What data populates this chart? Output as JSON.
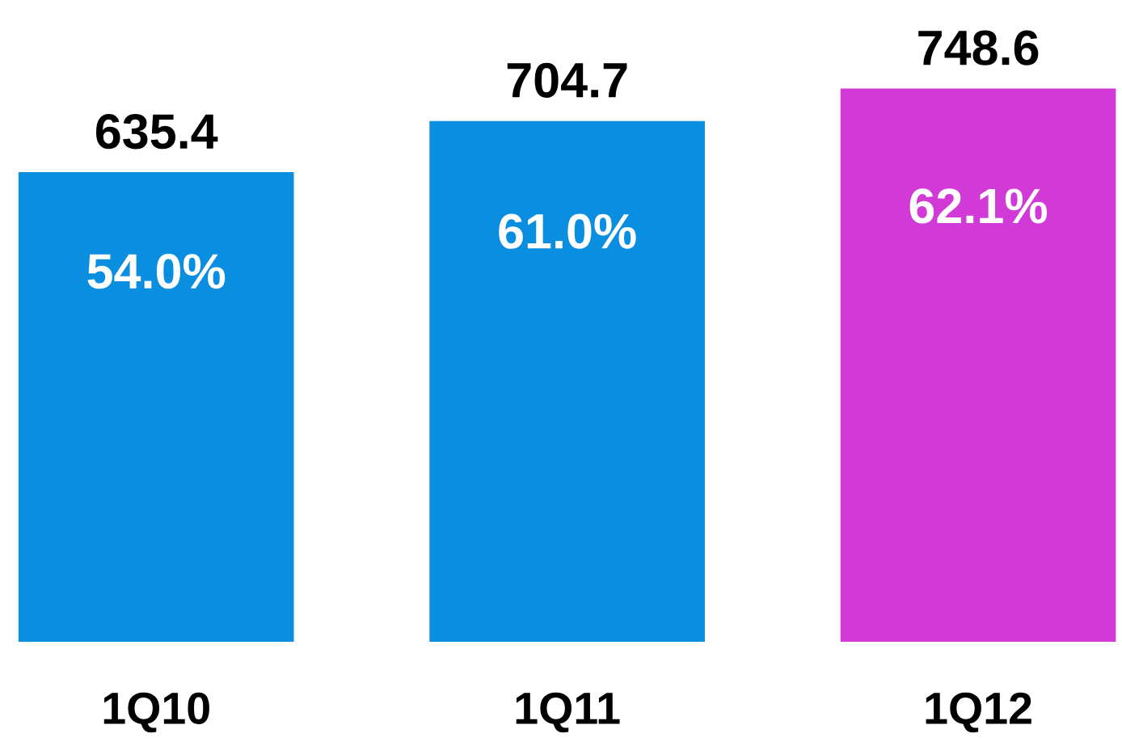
{
  "chart_data": {
    "type": "bar",
    "categories": [
      "1Q10",
      "1Q11",
      "1Q12"
    ],
    "values": [
      635.4,
      704.7,
      748.6
    ],
    "colors": [
      "#0a8ee0",
      "#0a8ee0",
      "#d23ad8"
    ],
    "data_labels": true,
    "annotations": [
      "54.0%",
      "61.0%",
      "62.1%"
    ],
    "grid": false,
    "legend": false,
    "tick_labels": "x"
  }
}
